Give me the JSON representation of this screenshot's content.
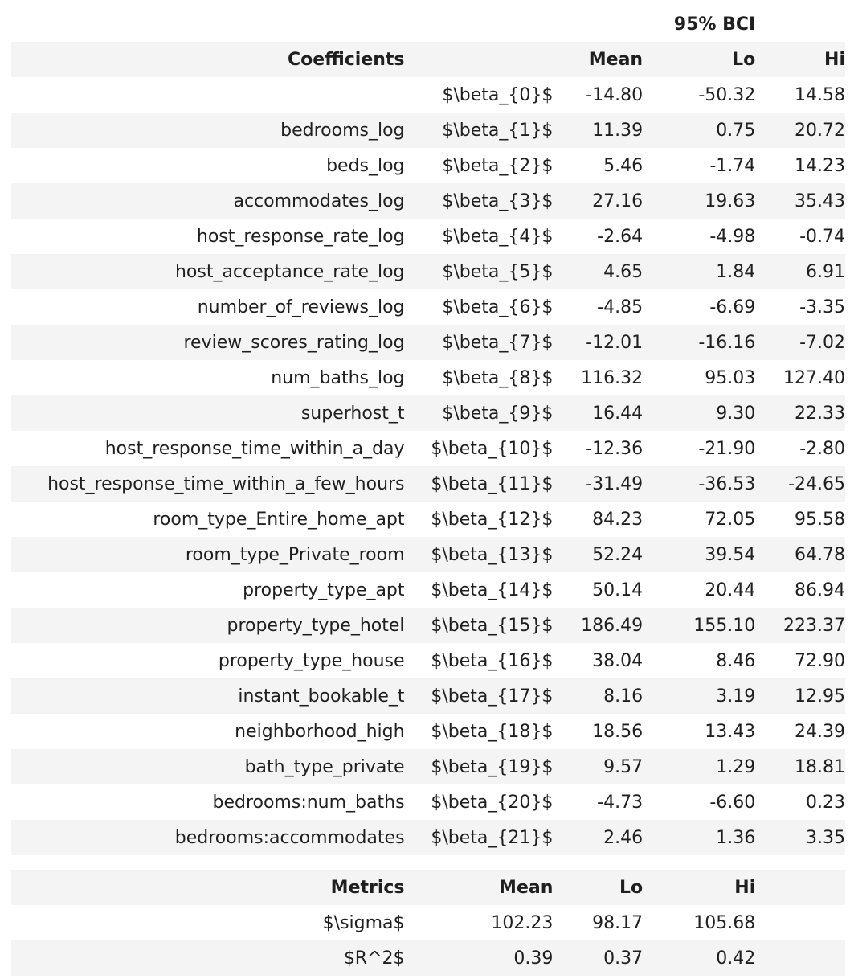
{
  "coef_table": {
    "group_header": "95% BCI",
    "headers": [
      "Coefficients",
      "",
      "Mean",
      "Lo",
      "Hi"
    ],
    "rows": [
      [
        "",
        "$\\beta_{0}$",
        "-14.80",
        "-50.32",
        "14.58"
      ],
      [
        "bedrooms_log",
        "$\\beta_{1}$",
        "11.39",
        "0.75",
        "20.72"
      ],
      [
        "beds_log",
        "$\\beta_{2}$",
        "5.46",
        "-1.74",
        "14.23"
      ],
      [
        "accommodates_log",
        "$\\beta_{3}$",
        "27.16",
        "19.63",
        "35.43"
      ],
      [
        "host_response_rate_log",
        "$\\beta_{4}$",
        "-2.64",
        "-4.98",
        "-0.74"
      ],
      [
        "host_acceptance_rate_log",
        "$\\beta_{5}$",
        "4.65",
        "1.84",
        "6.91"
      ],
      [
        "number_of_reviews_log",
        "$\\beta_{6}$",
        "-4.85",
        "-6.69",
        "-3.35"
      ],
      [
        "review_scores_rating_log",
        "$\\beta_{7}$",
        "-12.01",
        "-16.16",
        "-7.02"
      ],
      [
        "num_baths_log",
        "$\\beta_{8}$",
        "116.32",
        "95.03",
        "127.40"
      ],
      [
        "superhost_t",
        "$\\beta_{9}$",
        "16.44",
        "9.30",
        "22.33"
      ],
      [
        "host_response_time_within_a_day",
        "$\\beta_{10}$",
        "-12.36",
        "-21.90",
        "-2.80"
      ],
      [
        "host_response_time_within_a_few_hours",
        "$\\beta_{11}$",
        "-31.49",
        "-36.53",
        "-24.65"
      ],
      [
        "room_type_Entire_home_apt",
        "$\\beta_{12}$",
        "84.23",
        "72.05",
        "95.58"
      ],
      [
        "room_type_Private_room",
        "$\\beta_{13}$",
        "52.24",
        "39.54",
        "64.78"
      ],
      [
        "property_type_apt",
        "$\\beta_{14}$",
        "50.14",
        "20.44",
        "86.94"
      ],
      [
        "property_type_hotel",
        "$\\beta_{15}$",
        "186.49",
        "155.10",
        "223.37"
      ],
      [
        "property_type_house",
        "$\\beta_{16}$",
        "38.04",
        "8.46",
        "72.90"
      ],
      [
        "instant_bookable_t",
        "$\\beta_{17}$",
        "8.16",
        "3.19",
        "12.95"
      ],
      [
        "neighborhood_high",
        "$\\beta_{18}$",
        "18.56",
        "13.43",
        "24.39"
      ],
      [
        "bath_type_private",
        "$\\beta_{19}$",
        "9.57",
        "1.29",
        "18.81"
      ],
      [
        "bedrooms:num_baths",
        "$\\beta_{20}$",
        "-4.73",
        "-6.60",
        "0.23"
      ],
      [
        "bedrooms:accommodates",
        "$\\beta_{21}$",
        "2.46",
        "1.36",
        "3.35"
      ]
    ]
  },
  "metrics_table": {
    "headers": [
      "Metrics",
      "Mean",
      "Lo",
      "Hi"
    ],
    "rows": [
      [
        "$\\sigma$",
        "102.23",
        "98.17",
        "105.68"
      ],
      [
        "$R^2$",
        "0.39",
        "0.37",
        "0.42"
      ]
    ]
  }
}
